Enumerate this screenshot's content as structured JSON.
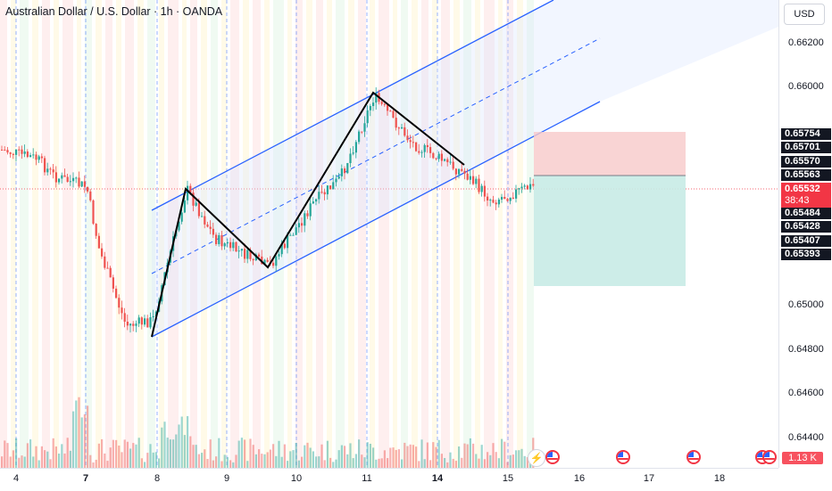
{
  "header": {
    "title": "Australian Dollar / U.S. Dollar · 1h · OANDA",
    "currency": "USD"
  },
  "price_axis": {
    "ticks": [
      "0.66200",
      "0.66000",
      "0.65000",
      "0.64800",
      "0.64600",
      "0.64400"
    ],
    "badges": [
      "0.65754",
      "0.65701",
      "0.65570",
      "0.65563",
      "0.65484",
      "0.65428",
      "0.65407",
      "0.65393"
    ],
    "current_price": "0.65532",
    "countdown": "38:43",
    "volume_badge": "1.13 K"
  },
  "time_axis": {
    "labels": [
      "4",
      "7",
      "8",
      "9",
      "10",
      "11",
      "14",
      "15",
      "16",
      "17",
      "18"
    ],
    "bold": [
      "7",
      "14"
    ]
  },
  "colors": {
    "up": "#26a69a",
    "down": "#ef5350",
    "channel": "#2962ff",
    "pattern": "#000000",
    "stop_zone": "#f7c9c9",
    "target_zone": "#c8ebe6"
  },
  "icons": {
    "event": "us-flag-event-icon",
    "alert": "lightning-icon"
  }
}
